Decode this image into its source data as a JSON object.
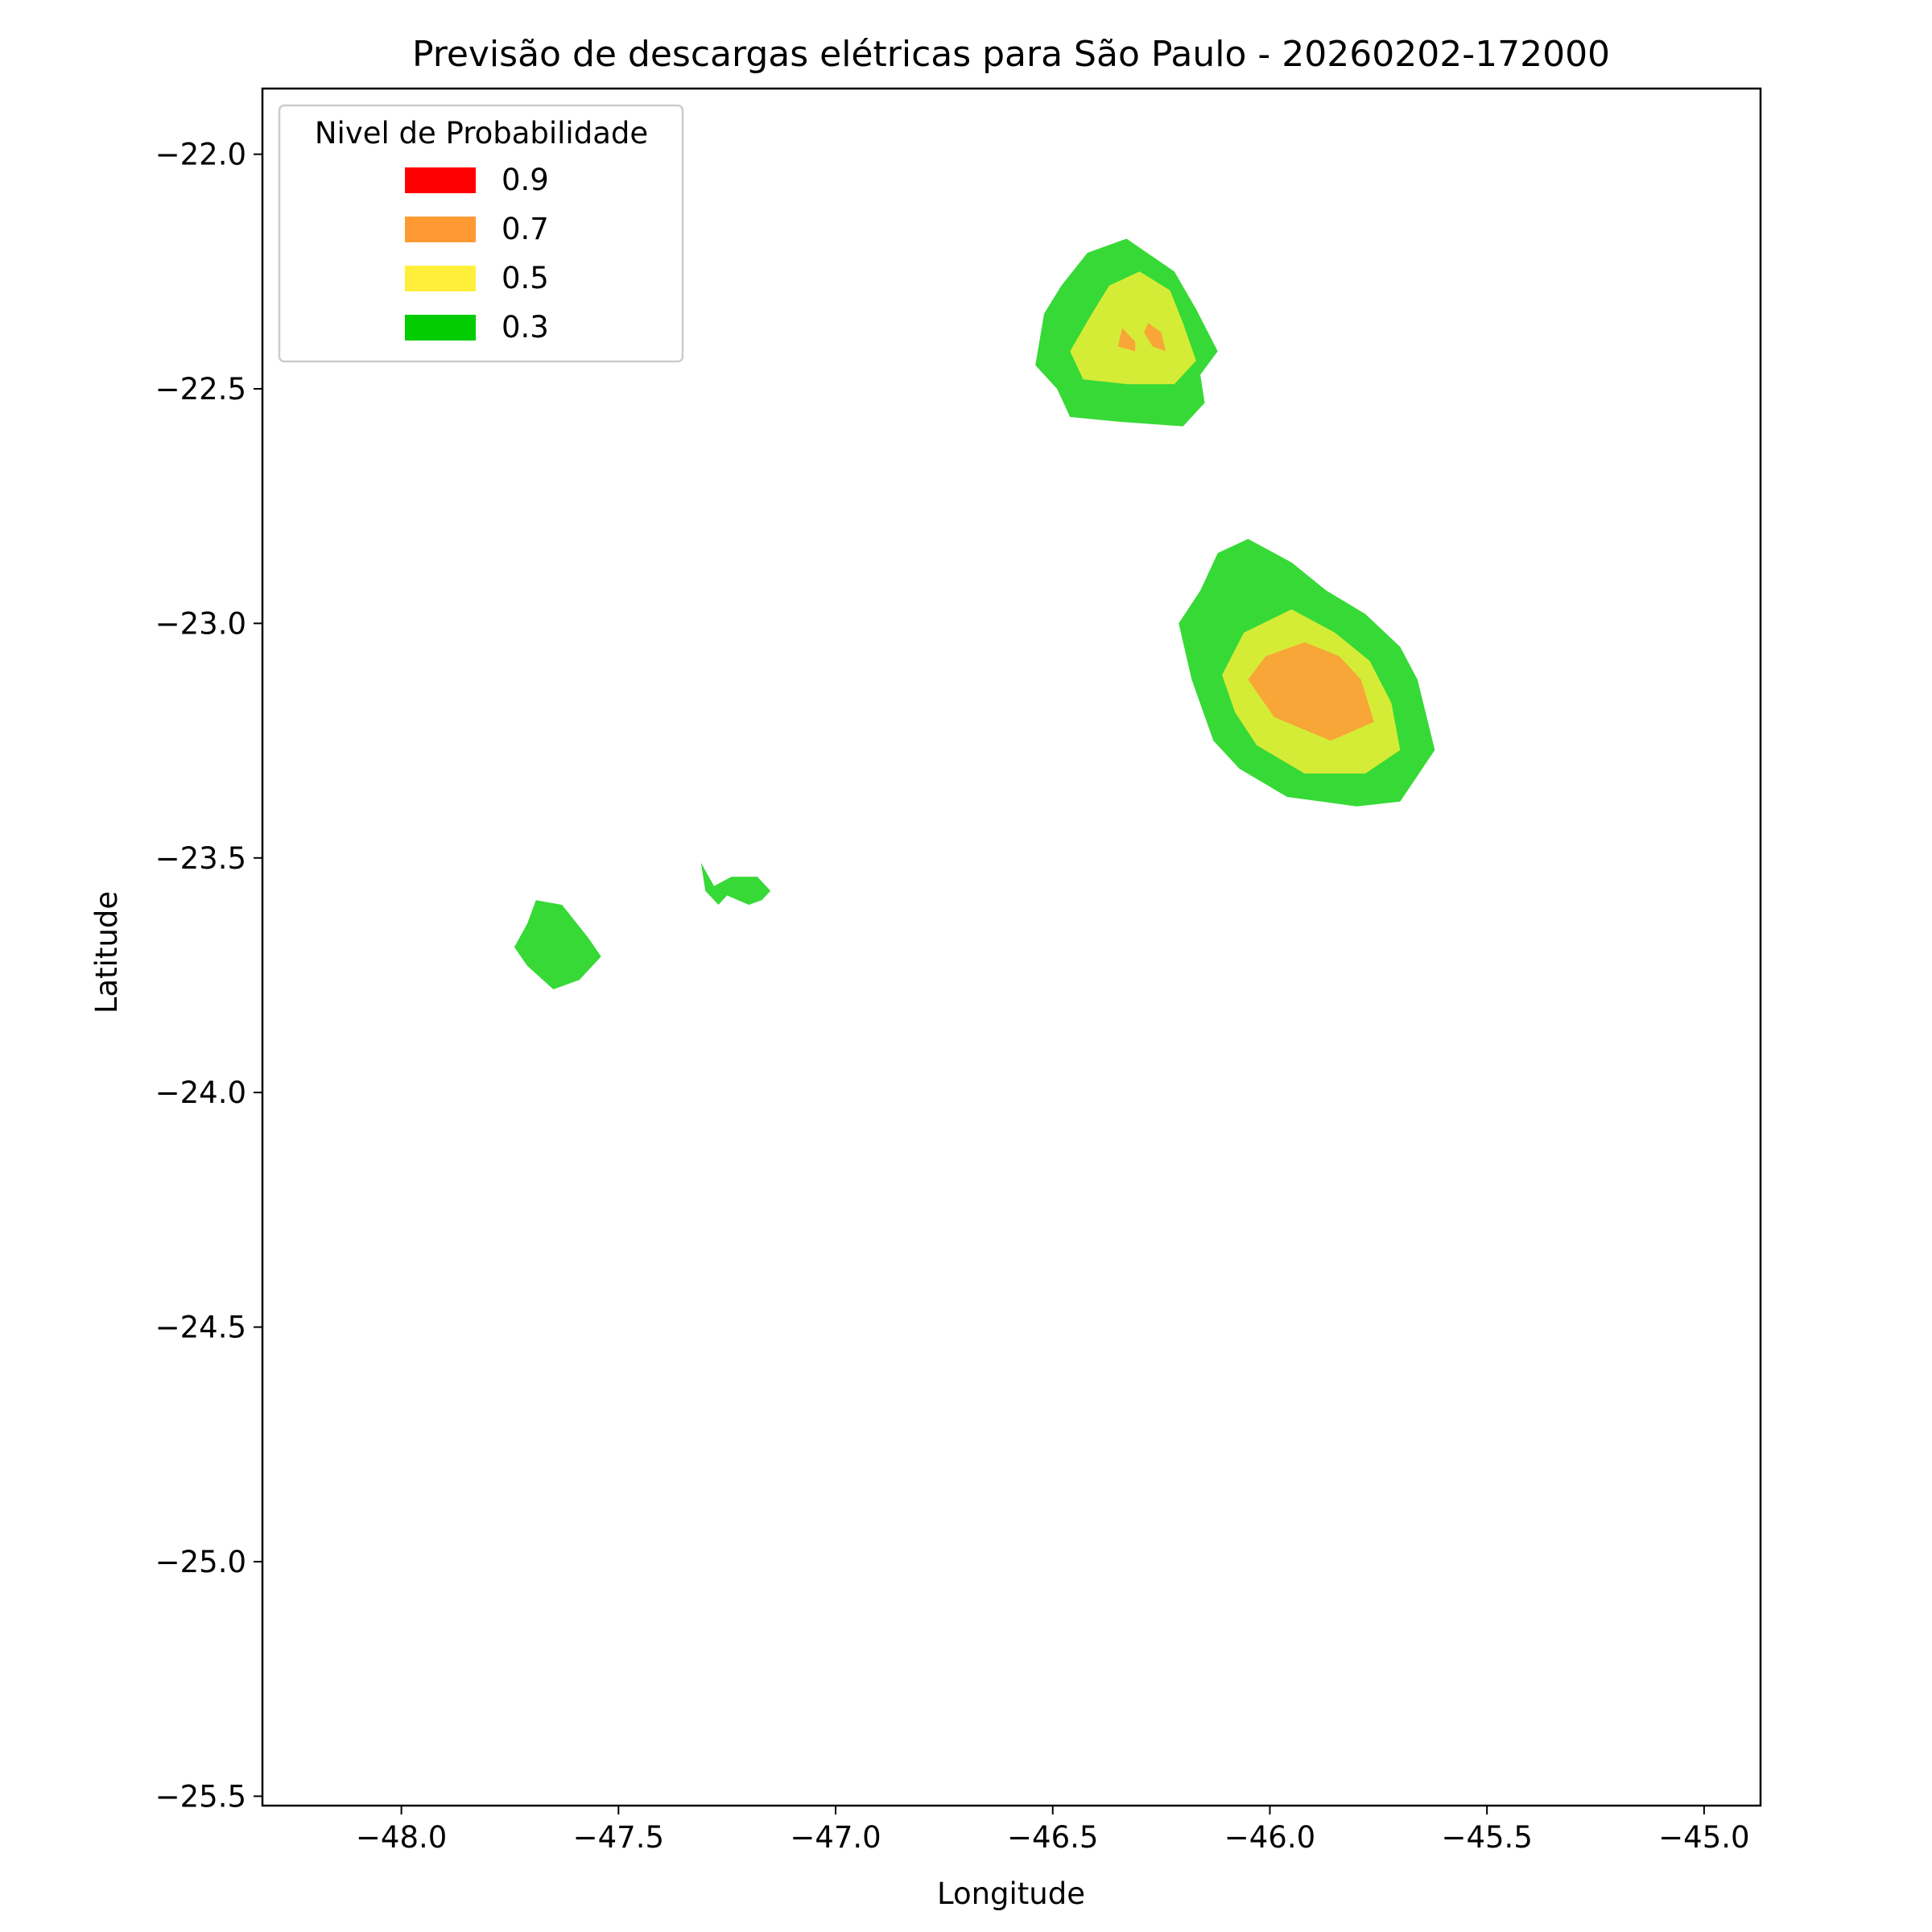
{
  "chart_data": {
    "type": "contour",
    "title": "Previsão de descargas elétricas para São Paulo - 20260202-172000",
    "xlabel": "Longitude",
    "ylabel": "Latitude",
    "xlim": [
      -48.32,
      -44.87
    ],
    "ylim": [
      -25.52,
      -21.86
    ],
    "xticks": [
      -48.0,
      -47.5,
      -47.0,
      -46.5,
      -46.0,
      -45.5,
      -45.0
    ],
    "yticks": [
      -22.0,
      -22.5,
      -23.0,
      -23.5,
      -24.0,
      -24.5,
      -25.0,
      -25.5
    ],
    "xtick_labels": [
      "−48.0",
      "−47.5",
      "−47.0",
      "−46.5",
      "−46.0",
      "−45.5",
      "−45.0"
    ],
    "ytick_labels": [
      "−22.0",
      "−22.5",
      "−23.0",
      "−23.5",
      "−24.0",
      "−24.5",
      "−25.0",
      "−25.5"
    ],
    "grid": false,
    "legend": {
      "title": "Nivel de Probabilidade",
      "position": "top-left",
      "entries": [
        {
          "label": "0.9",
          "color": "#ff0000"
        },
        {
          "label": "0.7",
          "color": "#ff9a33"
        },
        {
          "label": "0.5",
          "color": "#ffef3a"
        },
        {
          "label": "0.3",
          "color": "#00cc00"
        }
      ]
    },
    "fill_colors": {
      "0.3": "#37d937",
      "0.5": "#d5ec36",
      "0.7": "#f8a637"
    },
    "cells": [
      {
        "name": "cell-north",
        "center": [
          -46.32,
          -22.38
        ],
        "levels": [
          {
            "level": "0.3",
            "points": [
              [
                -46.42,
                -22.21
              ],
              [
                -46.33,
                -22.18
              ],
              [
                -46.22,
                -22.25
              ],
              [
                -46.17,
                -22.33
              ],
              [
                -46.12,
                -22.42
              ],
              [
                -46.16,
                -22.47
              ],
              [
                -46.15,
                -22.53
              ],
              [
                -46.2,
                -22.58
              ],
              [
                -46.35,
                -22.57
              ],
              [
                -46.46,
                -22.56
              ],
              [
                -46.49,
                -22.5
              ],
              [
                -46.54,
                -22.45
              ],
              [
                -46.52,
                -22.34
              ],
              [
                -46.48,
                -22.28
              ]
            ]
          },
          {
            "level": "0.5",
            "points": [
              [
                -46.37,
                -22.28
              ],
              [
                -46.3,
                -22.25
              ],
              [
                -46.23,
                -22.29
              ],
              [
                -46.2,
                -22.36
              ],
              [
                -46.17,
                -22.44
              ],
              [
                -46.22,
                -22.49
              ],
              [
                -46.33,
                -22.49
              ],
              [
                -46.43,
                -22.48
              ],
              [
                -46.46,
                -22.42
              ],
              [
                -46.41,
                -22.34
              ]
            ]
          },
          {
            "level": "0.7",
            "points": [
              [
                -46.34,
                -22.37
              ],
              [
                -46.31,
                -22.4
              ],
              [
                -46.31,
                -22.42
              ],
              [
                -46.35,
                -22.41
              ]
            ]
          },
          {
            "level": "0.7",
            "points": [
              [
                -46.28,
                -22.36
              ],
              [
                -46.25,
                -22.38
              ],
              [
                -46.24,
                -22.42
              ],
              [
                -46.27,
                -22.41
              ],
              [
                -46.29,
                -22.38
              ]
            ]
          }
        ]
      },
      {
        "name": "cell-east",
        "center": [
          -45.93,
          -23.12
        ],
        "levels": [
          {
            "level": "0.3",
            "points": [
              [
                -46.05,
                -22.82
              ],
              [
                -46.12,
                -22.85
              ],
              [
                -46.16,
                -22.93
              ],
              [
                -46.21,
                -23.0
              ],
              [
                -46.18,
                -23.12
              ],
              [
                -46.13,
                -23.25
              ],
              [
                -46.07,
                -23.31
              ],
              [
                -45.96,
                -23.37
              ],
              [
                -45.8,
                -23.39
              ],
              [
                -45.7,
                -23.38
              ],
              [
                -45.62,
                -23.27
              ],
              [
                -45.66,
                -23.12
              ],
              [
                -45.7,
                -23.05
              ],
              [
                -45.78,
                -22.98
              ],
              [
                -45.87,
                -22.93
              ],
              [
                -45.95,
                -22.87
              ]
            ]
          },
          {
            "level": "0.5",
            "points": [
              [
                -45.95,
                -22.97
              ],
              [
                -46.06,
                -23.02
              ],
              [
                -46.11,
                -23.11
              ],
              [
                -46.08,
                -23.19
              ],
              [
                -46.03,
                -23.26
              ],
              [
                -45.92,
                -23.32
              ],
              [
                -45.78,
                -23.32
              ],
              [
                -45.7,
                -23.27
              ],
              [
                -45.72,
                -23.17
              ],
              [
                -45.77,
                -23.08
              ],
              [
                -45.85,
                -23.02
              ]
            ]
          },
          {
            "level": "0.7",
            "points": [
              [
                -45.92,
                -23.04
              ],
              [
                -46.01,
                -23.07
              ],
              [
                -46.05,
                -23.12
              ],
              [
                -45.99,
                -23.2
              ],
              [
                -45.86,
                -23.25
              ],
              [
                -45.76,
                -23.21
              ],
              [
                -45.79,
                -23.12
              ],
              [
                -45.84,
                -23.07
              ]
            ]
          }
        ]
      },
      {
        "name": "cell-west",
        "center": [
          -47.64,
          -23.7
        ],
        "levels": [
          {
            "level": "0.3",
            "points": [
              [
                -47.69,
                -23.59
              ],
              [
                -47.63,
                -23.6
              ],
              [
                -47.57,
                -23.67
              ],
              [
                -47.54,
                -23.71
              ],
              [
                -47.59,
                -23.76
              ],
              [
                -47.65,
                -23.78
              ],
              [
                -47.71,
                -23.73
              ],
              [
                -47.74,
                -23.69
              ],
              [
                -47.71,
                -23.64
              ]
            ]
          }
        ]
      },
      {
        "name": "cell-southwest",
        "center": [
          -47.23,
          -23.57
        ],
        "levels": [
          {
            "level": "0.3",
            "points": [
              [
                -47.31,
                -23.51
              ],
              [
                -47.28,
                -23.56
              ],
              [
                -47.24,
                -23.54
              ],
              [
                -47.18,
                -23.54
              ],
              [
                -47.15,
                -23.57
              ],
              [
                -47.17,
                -23.59
              ],
              [
                -47.2,
                -23.6
              ],
              [
                -47.25,
                -23.58
              ],
              [
                -47.27,
                -23.6
              ],
              [
                -47.3,
                -23.57
              ]
            ]
          }
        ]
      }
    ]
  }
}
